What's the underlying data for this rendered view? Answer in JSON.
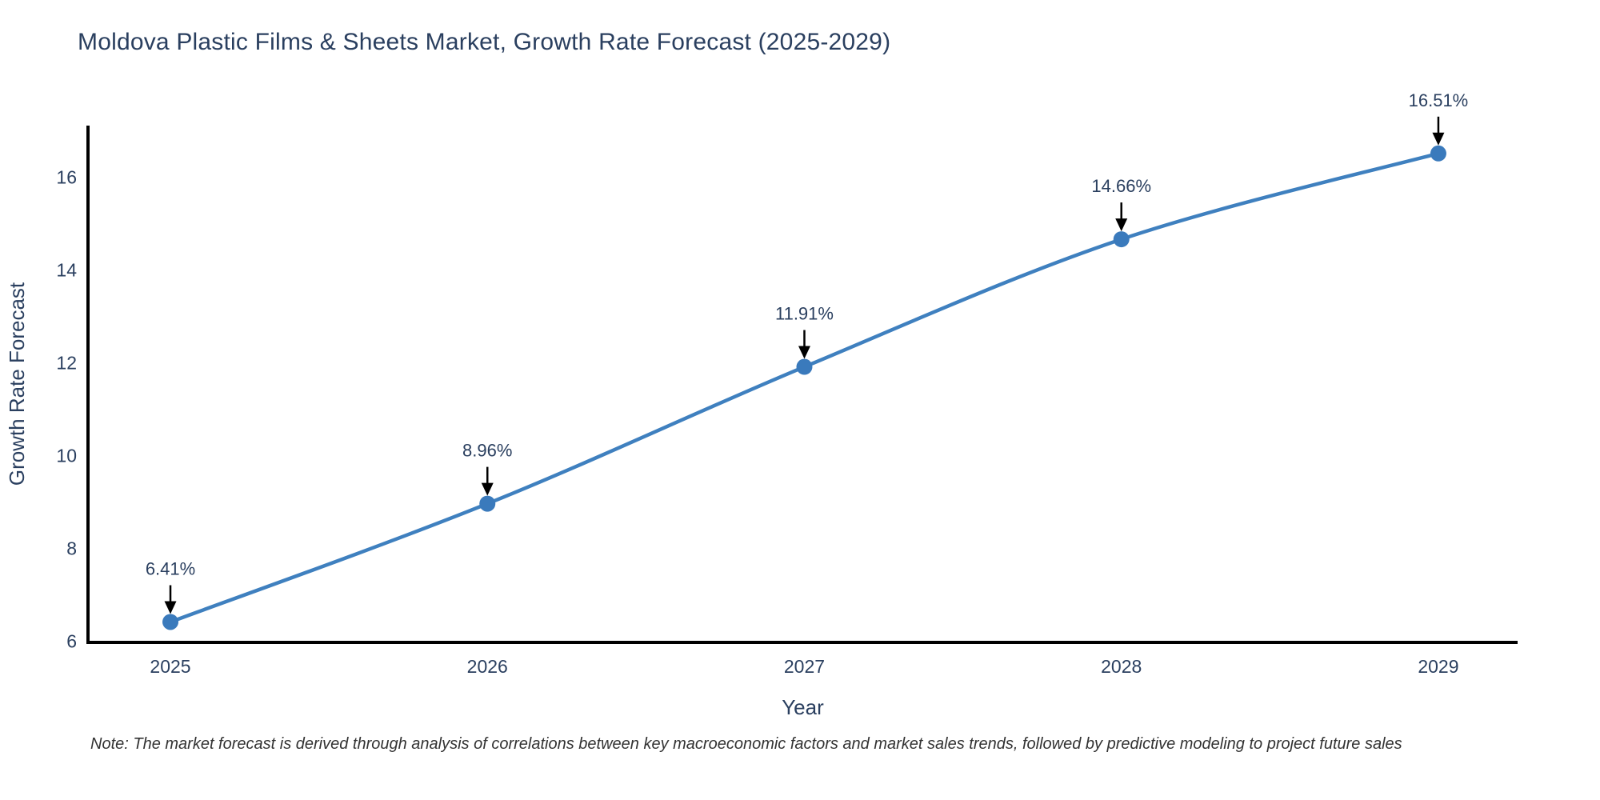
{
  "page": {
    "title": "Moldova Plastic Films & Sheets Market, Growth Rate Forecast (2025-2029)",
    "note": "Note: The market forecast is derived through analysis of correlations between key macroeconomic factors and market sales trends, followed by predictive modeling to project future sales"
  },
  "colors": {
    "title_text": "#2a3f5f",
    "tick_text": "#2a3f5f",
    "axis_label_text": "#2a3f5f",
    "axis_line": "#000000",
    "series_line": "#3f80bf",
    "marker_fill": "#3a7abc",
    "annotation_text": "#2a3f5f",
    "annotation_arrow": "#000000",
    "note_text": "#333333",
    "background": "#ffffff"
  },
  "chart_data": {
    "type": "line",
    "title": "Moldova Plastic Films & Sheets Market, Growth Rate Forecast (2025-2029)",
    "xlabel": "Year",
    "ylabel": "Growth Rate Forecast",
    "x": [
      2025,
      2026,
      2027,
      2028,
      2029
    ],
    "series": [
      {
        "name": "Growth Rate Forecast",
        "values": [
          6.41,
          8.96,
          11.91,
          14.66,
          16.51
        ]
      }
    ],
    "point_labels": [
      "6.41%",
      "8.96%",
      "11.91%",
      "14.66%",
      "16.51%"
    ],
    "xticks": [
      2025,
      2026,
      2027,
      2028,
      2029
    ],
    "yticks": [
      6,
      8,
      10,
      12,
      14,
      16
    ],
    "xlim": [
      2024.74,
      2029.25
    ],
    "ylim": [
      5.97,
      17.11
    ],
    "grid": false,
    "legend": "none",
    "line_shape": "spline"
  }
}
